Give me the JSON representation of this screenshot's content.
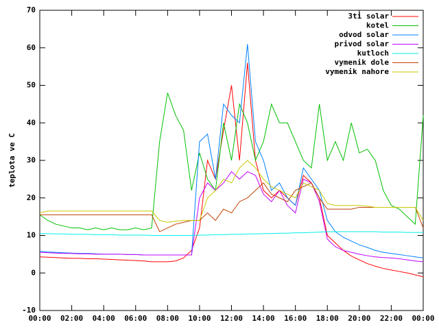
{
  "chart_data": {
    "type": "line",
    "ylabel": "teplota ve C",
    "x": [
      0,
      0.5,
      1,
      1.5,
      2,
      2.5,
      3,
      3.5,
      4,
      4.5,
      5,
      5.5,
      6,
      6.5,
      7,
      7.5,
      8,
      8.5,
      9,
      9.5,
      10,
      10.5,
      11,
      11.5,
      12,
      12.5,
      13,
      13.5,
      14,
      14.5,
      15,
      15.5,
      16,
      16.5,
      17,
      17.5,
      18,
      18.5,
      19,
      19.5,
      20,
      20.5,
      21,
      21.5,
      22,
      22.5,
      23,
      23.5,
      24
    ],
    "xlim": [
      0,
      24
    ],
    "xticks": [
      {
        "value": 0,
        "label": "00:00"
      },
      {
        "value": 2,
        "label": "02:00"
      },
      {
        "value": 4,
        "label": "04:00"
      },
      {
        "value": 6,
        "label": "06:00"
      },
      {
        "value": 8,
        "label": "08:00"
      },
      {
        "value": 10,
        "label": "10:00"
      },
      {
        "value": 12,
        "label": "12:00"
      },
      {
        "value": 14,
        "label": "14:00"
      },
      {
        "value": 16,
        "label": "16:00"
      },
      {
        "value": 18,
        "label": "18:00"
      },
      {
        "value": 20,
        "label": "20:00"
      },
      {
        "value": 22,
        "label": "22:00"
      },
      {
        "value": 24,
        "label": "00:00"
      }
    ],
    "ylim": [
      -10,
      70
    ],
    "yticks": [
      -10,
      0,
      10,
      20,
      30,
      40,
      50,
      60,
      70
    ],
    "legend": "top-right",
    "series": [
      {
        "name": "3ti solar",
        "color": "#ff0000",
        "values": [
          4.3,
          4.2,
          4.1,
          4,
          3.9,
          3.9,
          3.8,
          3.8,
          3.7,
          3.6,
          3.5,
          3.4,
          3.3,
          3.2,
          3,
          3,
          3,
          3.2,
          4,
          6,
          12,
          30,
          25,
          38,
          50,
          30,
          56,
          30,
          22,
          20,
          22,
          20,
          18,
          26,
          24,
          20,
          10,
          8,
          6,
          4.5,
          3.5,
          2.5,
          1.8,
          1.2,
          0.8,
          0.4,
          0,
          -0.5,
          -1
        ]
      },
      {
        "name": "kotel",
        "color": "#00c000",
        "values": [
          15.5,
          14,
          13,
          12.5,
          12,
          12,
          11.5,
          12,
          11.5,
          12,
          11.5,
          11.5,
          12,
          11.5,
          12,
          35,
          48,
          42,
          38,
          22,
          32,
          25,
          22,
          40,
          30,
          45,
          40,
          30,
          35,
          45,
          40,
          40,
          35,
          30,
          28,
          45,
          30,
          35,
          30,
          40,
          32,
          33,
          30,
          22,
          18,
          17,
          15,
          13,
          42
        ]
      },
      {
        "name": "odvod solar",
        "color": "#0080ff",
        "values": [
          5.8,
          5.6,
          5.5,
          5.4,
          5.3,
          5.2,
          5.2,
          5.1,
          5,
          5,
          5,
          4.9,
          4.9,
          4.8,
          4.8,
          4.8,
          4.8,
          4.8,
          4.8,
          4.8,
          35,
          37,
          25,
          45,
          42,
          40,
          61,
          35,
          30,
          22,
          24,
          20,
          18,
          28,
          25,
          22,
          14,
          11,
          9.5,
          8.5,
          7.5,
          6.8,
          6,
          5.5,
          5.2,
          4.9,
          4.6,
          4.3,
          4
        ]
      },
      {
        "name": "privod solar",
        "color": "#c000ff",
        "values": [
          5.5,
          5.4,
          5.3,
          5.2,
          5.2,
          5.1,
          5.1,
          5,
          5,
          5,
          5,
          4.9,
          4.9,
          4.8,
          4.8,
          4.8,
          4.8,
          4.8,
          4.8,
          4.8,
          20,
          24,
          22,
          24,
          27,
          25,
          27,
          26,
          21,
          19,
          22,
          18,
          16,
          25,
          24,
          19,
          9,
          7,
          6,
          5.5,
          5,
          4.6,
          4.3,
          4.1,
          4,
          3.8,
          3.5,
          3.2,
          3
        ]
      },
      {
        "name": "kutloch",
        "color": "#00eeee",
        "values": [
          10.5,
          10.5,
          10.4,
          10.4,
          10.3,
          10.3,
          10.3,
          10.2,
          10.2,
          10.2,
          10.1,
          10.1,
          10.1,
          10.1,
          10,
          10,
          10,
          10,
          10,
          10,
          10.1,
          10.1,
          10.2,
          10.2,
          10.3,
          10.3,
          10.4,
          10.4,
          10.5,
          10.5,
          10.6,
          10.6,
          10.7,
          10.7,
          10.8,
          10.9,
          11,
          11,
          11,
          11,
          11,
          11,
          11,
          10.9,
          10.9,
          10.9,
          10.8,
          10.8,
          10.8
        ]
      },
      {
        "name": "vymenik dole",
        "color": "#c04000",
        "values": [
          15.5,
          15.5,
          15.5,
          15.5,
          15.5,
          15.5,
          15.5,
          15.5,
          15.5,
          15.5,
          15.5,
          15.5,
          15.5,
          15.5,
          15.5,
          11,
          12,
          13,
          13.5,
          14,
          14,
          16,
          14,
          17,
          16,
          19,
          20,
          22,
          24,
          21,
          20,
          19,
          22,
          23,
          24,
          20,
          17,
          17,
          17,
          17,
          17.5,
          17.5,
          17.5,
          17.5,
          17.5,
          17.5,
          17.5,
          17.5,
          12
        ]
      },
      {
        "name": "vymenik nahore",
        "color": "#c8c800",
        "values": [
          16,
          16.5,
          16.5,
          16.5,
          16.5,
          16.5,
          16.5,
          16.5,
          16.5,
          16.5,
          16.5,
          16.5,
          16.5,
          16.5,
          16.5,
          14,
          13.5,
          13.8,
          14,
          14,
          14,
          20,
          22,
          25,
          24,
          28,
          30,
          28,
          25,
          23,
          22,
          21,
          20,
          24,
          23,
          22,
          18.5,
          18,
          18,
          18,
          18,
          17.8,
          17.5,
          17.5,
          17.5,
          17.5,
          17.5,
          17.5,
          14
        ]
      }
    ]
  }
}
